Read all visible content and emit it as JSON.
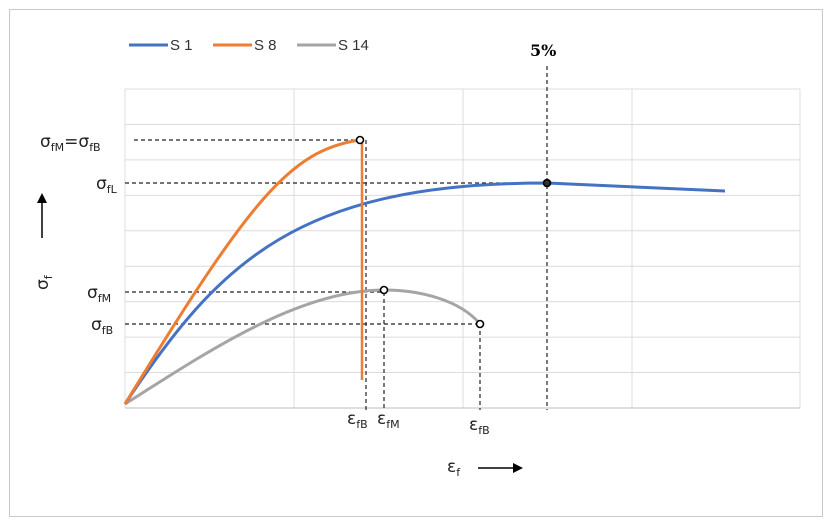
{
  "chart_data": {
    "type": "line",
    "legend_position": "top-left",
    "grid": true,
    "series": [
      {
        "name": "S 1",
        "color": "#4472c4"
      },
      {
        "name": "S 8",
        "color": "#ed7d31"
      },
      {
        "name": "S 14",
        "color": "#a5a5a5"
      }
    ],
    "annotations": {
      "percent_label": "5%",
      "y_axis_symbol": "σ",
      "y_axis_sub": "f",
      "x_axis_symbol": "ε",
      "x_axis_sub": "f",
      "y_labels": [
        {
          "sym": "σ",
          "sub": "fM",
          "extra_sym": "=σ",
          "extra_sub": "fB"
        },
        {
          "sym": "σ",
          "sub": "fL"
        },
        {
          "sym": "σ",
          "sub": "fM"
        },
        {
          "sym": "σ",
          "sub": "fB"
        }
      ],
      "x_labels": [
        {
          "sym": "ε",
          "sub": "fB"
        },
        {
          "sym": "ε",
          "sub": "fM"
        },
        {
          "sym": "ε",
          "sub": "fB"
        }
      ]
    }
  }
}
